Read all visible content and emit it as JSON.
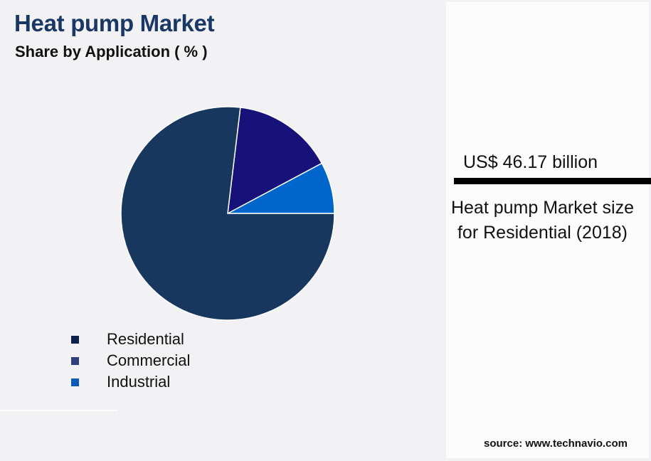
{
  "header": {
    "title": "Heat pump Market",
    "subtitle": "Share by Application ( % )"
  },
  "chart_data": {
    "type": "pie",
    "title": "Heat pump Market",
    "subtitle": "Share by Application ( % )",
    "categories": [
      "Residential",
      "Commercial",
      "Industrial"
    ],
    "values": [
      76.9,
      15.3,
      7.8
    ],
    "colors": [
      "#17375e",
      "#16127a",
      "#0066cc"
    ],
    "legend_position": "bottom-left",
    "start_angle_deg": 0,
    "direction": "counterclockwise-from-3-oclock"
  },
  "legend": {
    "items": [
      {
        "label": "Residential",
        "color": "#0d1f4a"
      },
      {
        "label": "Commercial",
        "color": "#2e3f7c"
      },
      {
        "label": "Industrial",
        "color": "#0a5bb5"
      }
    ]
  },
  "highlight": {
    "value": "US$ 46.17 billion",
    "description": "Heat pump Market size for Residential (2018)"
  },
  "footer": {
    "source": "source: www.technavio.com"
  }
}
